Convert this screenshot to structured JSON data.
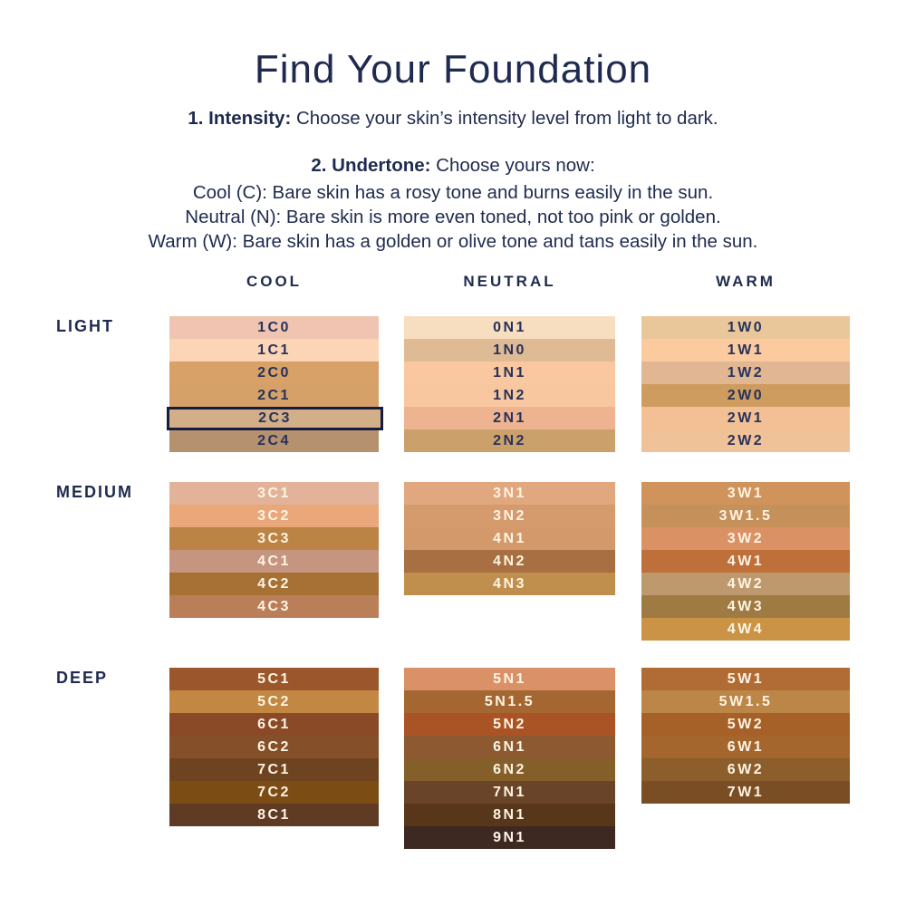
{
  "header": {
    "title": "Find Your Foundation",
    "step1_bold": "1. Intensity:",
    "step1_rest": " Choose your skin’s intensity level from light to dark.",
    "step2_bold": "2. Undertone:",
    "step2_rest": " Choose yours now:",
    "undertone_cool": "Cool (C): Bare skin has a rosy tone and burns easily in the sun.",
    "undertone_neutral": "Neutral (N): Bare skin is more even toned, not too pink or golden.",
    "undertone_warm": "Warm (W): Bare skin has a golden or olive tone and tans easily in the sun."
  },
  "colors": {
    "navy": "#1f2b4e",
    "highlight_border": "#161c40",
    "label_on_light_swatch": "#27325a",
    "label_on_dark_swatch": "#fdf4e3",
    "background": "#ffffff"
  },
  "chart_data": {
    "type": "table",
    "title": "Find Your Foundation",
    "columns": [
      "COOL",
      "NEUTRAL",
      "WARM"
    ],
    "selected_shade": "2C3",
    "sections": [
      {
        "label": "LIGHT",
        "swatch_text": "dark",
        "cool": [
          {
            "code": "1C0",
            "color": "#f0c4b0"
          },
          {
            "code": "1C1",
            "color": "#fcd5b6"
          },
          {
            "code": "2C0",
            "color": "#d7a168"
          },
          {
            "code": "2C1",
            "color": "#d6a069"
          },
          {
            "code": "2C3",
            "color": "#d2ae89",
            "selected": true
          },
          {
            "code": "2C4",
            "color": "#b5916f"
          }
        ],
        "neutral": [
          {
            "code": "0N1",
            "color": "#f8dec0"
          },
          {
            "code": "1N0",
            "color": "#dfbb95"
          },
          {
            "code": "1N1",
            "color": "#fac8a0"
          },
          {
            "code": "1N2",
            "color": "#f9c79f"
          },
          {
            "code": "2N1",
            "color": "#eeb491"
          },
          {
            "code": "2N2",
            "color": "#cba16b"
          }
        ],
        "warm": [
          {
            "code": "1W0",
            "color": "#eac79a"
          },
          {
            "code": "1W1",
            "color": "#fcca9f"
          },
          {
            "code": "1W2",
            "color": "#e1b693"
          },
          {
            "code": "2W0",
            "color": "#cf9c60"
          },
          {
            "code": "2W1",
            "color": "#f2c094"
          },
          {
            "code": "2W2",
            "color": "#f0c298"
          }
        ]
      },
      {
        "label": "MEDIUM",
        "swatch_text": "light",
        "cool": [
          {
            "code": "3C1",
            "color": "#e2b399"
          },
          {
            "code": "3C2",
            "color": "#eaa77a"
          },
          {
            "code": "3C3",
            "color": "#bc8444"
          },
          {
            "code": "4C1",
            "color": "#c69580"
          },
          {
            "code": "4C2",
            "color": "#a77035"
          },
          {
            "code": "4C3",
            "color": "#ba7e58"
          }
        ],
        "neutral": [
          {
            "code": "3N1",
            "color": "#e1a77e"
          },
          {
            "code": "3N2",
            "color": "#d59b6d"
          },
          {
            "code": "4N1",
            "color": "#d3996a"
          },
          {
            "code": "4N2",
            "color": "#a87042"
          },
          {
            "code": "4N3",
            "color": "#c18f4d"
          }
        ],
        "warm": [
          {
            "code": "3W1",
            "color": "#cf935b"
          },
          {
            "code": "3W1.5",
            "color": "#c5905a"
          },
          {
            "code": "3W2",
            "color": "#da9164"
          },
          {
            "code": "4W1",
            "color": "#bf6f39"
          },
          {
            "code": "4W2",
            "color": "#be996d"
          },
          {
            "code": "4W3",
            "color": "#9f7b43"
          },
          {
            "code": "4W4",
            "color": "#cb9345"
          }
        ]
      },
      {
        "label": "DEEP",
        "swatch_text": "light",
        "cool": [
          {
            "code": "5C1",
            "color": "#9b562c"
          },
          {
            "code": "5C2",
            "color": "#c38744"
          },
          {
            "code": "6C1",
            "color": "#8a4a27"
          },
          {
            "code": "6C2",
            "color": "#844f29"
          },
          {
            "code": "7C1",
            "color": "#6e4420"
          },
          {
            "code": "7C2",
            "color": "#7c4c15"
          },
          {
            "code": "8C1",
            "color": "#5e3b22"
          }
        ],
        "neutral": [
          {
            "code": "5N1",
            "color": "#da9167"
          },
          {
            "code": "5N1.5",
            "color": "#a56731"
          },
          {
            "code": "5N2",
            "color": "#aa5426"
          },
          {
            "code": "6N1",
            "color": "#8c5930"
          },
          {
            "code": "6N2",
            "color": "#845f29"
          },
          {
            "code": "7N1",
            "color": "#694429"
          },
          {
            "code": "8N1",
            "color": "#57361a"
          },
          {
            "code": "9N1",
            "color": "#3e2922"
          }
        ],
        "warm": [
          {
            "code": "5W1",
            "color": "#b16c35"
          },
          {
            "code": "5W1.5",
            "color": "#bc8648"
          },
          {
            "code": "5W2",
            "color": "#a66128"
          },
          {
            "code": "6W1",
            "color": "#a4662d"
          },
          {
            "code": "6W2",
            "color": "#8c5e2b"
          },
          {
            "code": "7W1",
            "color": "#794e25"
          }
        ]
      }
    ]
  }
}
